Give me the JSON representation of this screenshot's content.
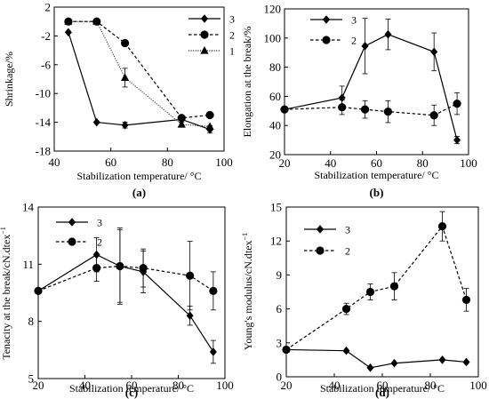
{
  "chart_data": [
    {
      "type": "line",
      "panel_label": "(a)",
      "xlabel": "Stabilization temperature/ °C",
      "ylabel": "Shrinkage/%",
      "xlim": [
        40,
        100
      ],
      "ylim": [
        -18,
        2
      ],
      "xticks": [
        40,
        60,
        80,
        100
      ],
      "yticks": [
        2,
        -2,
        -6,
        -10,
        -14,
        -18
      ],
      "legend_position": "top-right",
      "series": [
        {
          "name": "3",
          "marker": "diamond",
          "dash": "solid",
          "x": [
            45,
            55,
            65,
            85,
            95
          ],
          "y": [
            -1.5,
            -14.0,
            -14.4,
            -13.6,
            -15.0
          ],
          "err": [
            0,
            0,
            0.4,
            0,
            0.5
          ]
        },
        {
          "name": "2",
          "marker": "circle",
          "dash": "dashed",
          "x": [
            45,
            55,
            65,
            85,
            95
          ],
          "y": [
            0,
            0,
            -3.0,
            -13.4,
            -13.0
          ],
          "err": [
            0,
            0,
            0,
            0,
            0
          ]
        },
        {
          "name": "1",
          "marker": "triangle",
          "dash": "dotted",
          "x": [
            45,
            55,
            65,
            85,
            95
          ],
          "y": [
            0,
            0,
            -7.8,
            -14.3,
            -14.6
          ],
          "err": [
            0,
            0,
            1.3,
            0.3,
            0
          ]
        }
      ]
    },
    {
      "type": "line",
      "panel_label": "(b)",
      "xlabel": "Stabilization temperature/ °C",
      "ylabel": "Elongation at the break/%",
      "xlim": [
        20,
        100
      ],
      "ylim": [
        20,
        120
      ],
      "xticks": [
        20,
        40,
        60,
        80,
        100
      ],
      "yticks": [
        20,
        40,
        60,
        80,
        100,
        120
      ],
      "legend_position": "top-left",
      "series": [
        {
          "name": "3",
          "marker": "diamond",
          "dash": "solid",
          "x": [
            20,
            45,
            55,
            65,
            85,
            95
          ],
          "y": [
            51,
            59,
            94.5,
            102.5,
            90.5,
            30
          ],
          "err": [
            0,
            8,
            19,
            10.5,
            13,
            2.5
          ]
        },
        {
          "name": "2",
          "marker": "circle",
          "dash": "dashed",
          "x": [
            20,
            45,
            55,
            65,
            85,
            95
          ],
          "y": [
            51,
            52.5,
            51,
            49.5,
            47,
            55
          ],
          "err": [
            0,
            5,
            6,
            7.5,
            7,
            7.5
          ]
        }
      ]
    },
    {
      "type": "line",
      "panel_label": "(c)",
      "xlabel": "Stabilization temperature/ °C",
      "ylabel": "Tenacity at the break/cN.dtex",
      "ylabel_sup": "−1",
      "xlim": [
        20,
        100
      ],
      "ylim": [
        5,
        14
      ],
      "xticks": [
        20,
        40,
        60,
        80,
        100
      ],
      "yticks": [
        5,
        8,
        11,
        14
      ],
      "legend_position": "top-left",
      "series": [
        {
          "name": "3",
          "marker": "diamond",
          "dash": "solid",
          "x": [
            20,
            45,
            55,
            65,
            85,
            95
          ],
          "y": [
            9.6,
            11.5,
            10.9,
            10.6,
            8.3,
            6.4
          ],
          "err": [
            0,
            0.9,
            2.0,
            1.1,
            0.5,
            0.6
          ]
        },
        {
          "name": "2",
          "marker": "circle",
          "dash": "dashed",
          "x": [
            20,
            45,
            55,
            65,
            85,
            95
          ],
          "y": [
            9.6,
            10.8,
            10.9,
            10.8,
            10.4,
            9.6
          ],
          "err": [
            0,
            0.7,
            1.9,
            1.0,
            1.8,
            1.0
          ]
        }
      ]
    },
    {
      "type": "line",
      "panel_label": "(d)",
      "xlabel": "Stabilization temperature/ °C",
      "ylabel": "Young's modulus/cN.dtex",
      "ylabel_sup": "−1",
      "xlim": [
        20,
        100
      ],
      "ylim": [
        0,
        15
      ],
      "xticks": [
        20,
        40,
        60,
        80,
        100
      ],
      "yticks": [
        0,
        3,
        6,
        9,
        12,
        15
      ],
      "legend_position": "top-left",
      "series": [
        {
          "name": "3",
          "marker": "diamond",
          "dash": "solid",
          "x": [
            20,
            45,
            55,
            65,
            85,
            95
          ],
          "y": [
            2.4,
            2.3,
            0.8,
            1.2,
            1.5,
            1.3
          ],
          "err": [
            0,
            0,
            0,
            0,
            0,
            0
          ]
        },
        {
          "name": "2",
          "marker": "circle",
          "dash": "dashed",
          "x": [
            20,
            45,
            55,
            65,
            85,
            95
          ],
          "y": [
            2.4,
            6.0,
            7.5,
            8.0,
            13.3,
            6.8
          ],
          "err": [
            0,
            0.5,
            0.7,
            1.2,
            1.3,
            1.0
          ]
        }
      ]
    }
  ]
}
